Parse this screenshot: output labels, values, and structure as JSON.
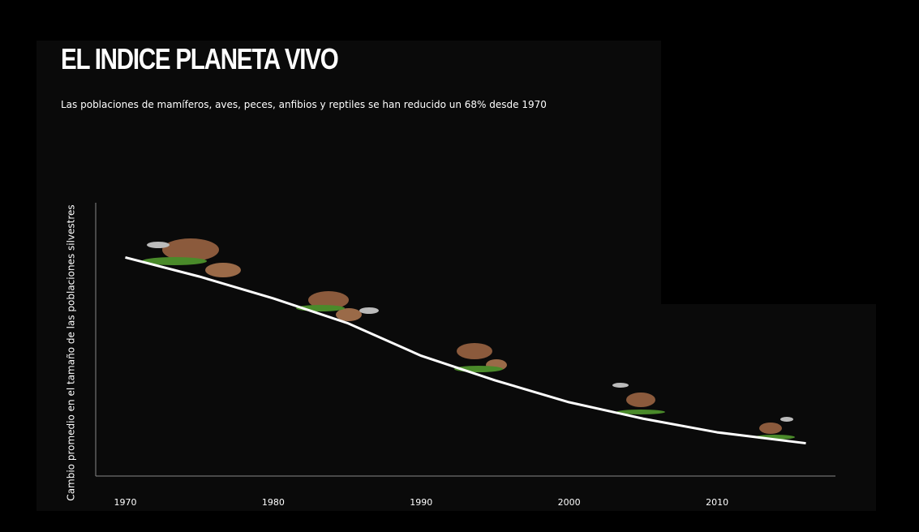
{
  "chart_data": {
    "type": "line",
    "title": "EL INDICE PLANETA VIVO",
    "subtitle": "Las poblaciones de mamíferos, aves, peces, anfibios y reptiles se han reducido un 68% desde 1970",
    "y_label": "Cambio promedio en el tamaño de las poblaciones silvestres",
    "x": [
      1970,
      1975,
      1980,
      1985,
      1990,
      1995,
      2000,
      2005,
      2010,
      2016
    ],
    "values": [
      1.0,
      0.93,
      0.85,
      0.76,
      0.64,
      0.55,
      0.47,
      0.41,
      0.36,
      0.32
    ],
    "color": "#ffffff",
    "xlim": [
      1968,
      2018
    ],
    "xticks": [
      1970,
      1980,
      1990,
      2000,
      2010
    ],
    "ylim": [
      0.2,
      1.2
    ]
  }
}
